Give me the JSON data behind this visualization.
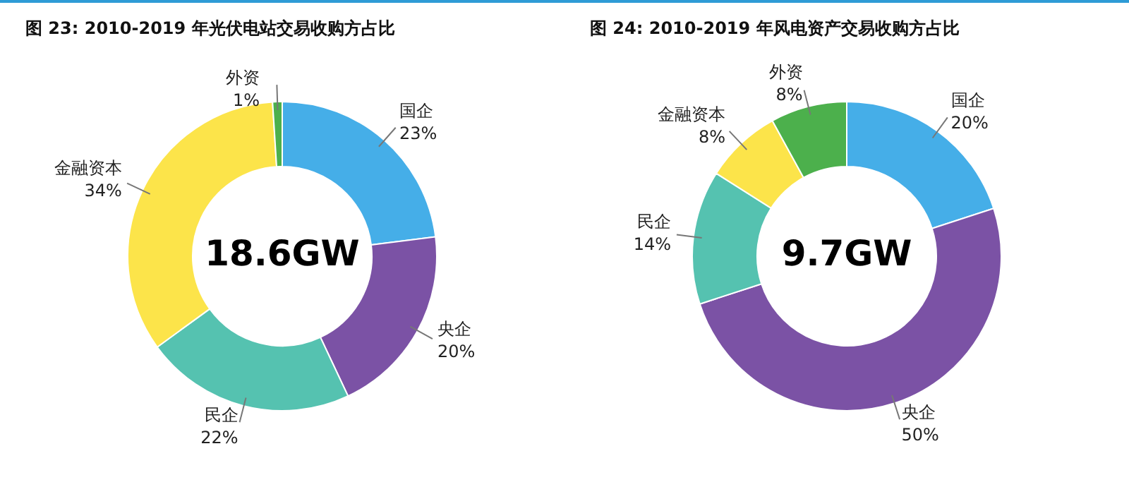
{
  "chart_data": [
    {
      "type": "donut",
      "title": "图 23: 2010-2019 年光伏电站交易收购方占比",
      "categories": [
        "国企",
        "央企",
        "民企",
        "金融资本",
        "外资"
      ],
      "values": [
        23,
        20,
        22,
        34,
        1
      ],
      "value_labels": [
        "23%",
        "20%",
        "22%",
        "34%",
        "1%"
      ],
      "colors": [
        "#45aee8",
        "#7b52a5",
        "#55c2b0",
        "#fce44a",
        "#4cb04c"
      ],
      "annotations": [
        "18.6GW"
      ],
      "legend": false
    },
    {
      "type": "donut",
      "title": "图 24: 2010-2019 年风电资产交易收购方占比",
      "categories": [
        "国企",
        "央企",
        "民企",
        "金融资本",
        "外资"
      ],
      "values": [
        20,
        50,
        14,
        8,
        8
      ],
      "value_labels": [
        "20%",
        "50%",
        "14%",
        "8%",
        "8%"
      ],
      "colors": [
        "#45aee8",
        "#7b52a5",
        "#55c2b0",
        "#fce44a",
        "#4cb04c"
      ],
      "annotations": [
        "9.7GW"
      ],
      "legend": false
    }
  ]
}
